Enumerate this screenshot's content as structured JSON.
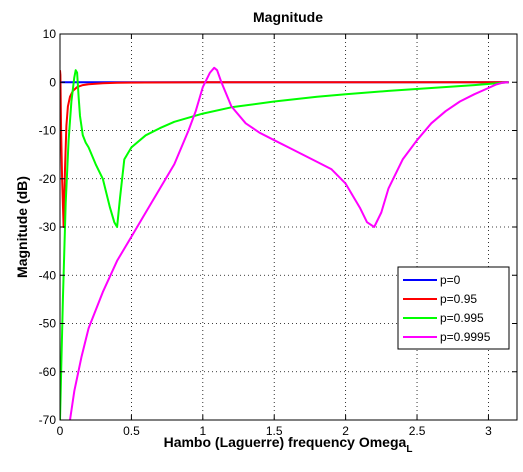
{
  "chart_data": {
    "type": "line",
    "title": "Magnitude",
    "xlabel": "Hambo (Laguerre) frequency Omega",
    "xlabel_subscript": "L",
    "ylabel": "Magnitude (dB)",
    "xlim": [
      0,
      3.2
    ],
    "ylim": [
      -70,
      10
    ],
    "xticks": [
      0,
      0.5,
      1,
      1.5,
      2,
      2.5,
      3
    ],
    "xtick_labels": [
      "0",
      "0.5",
      "1",
      "1.5",
      "2",
      "2.5",
      "3"
    ],
    "yticks": [
      -70,
      -60,
      -50,
      -40,
      -30,
      -20,
      -10,
      0,
      10
    ],
    "ytick_labels": [
      "-70",
      "-60",
      "-50",
      "-40",
      "-30",
      "-20",
      "-10",
      "0",
      "10"
    ],
    "grid": true,
    "legend_position": "bottom-right",
    "series": [
      {
        "name": "p=0",
        "color": "#0000ff",
        "x": [
          0,
          0.5,
          1.0,
          1.5,
          2.0,
          2.5,
          3.1416
        ],
        "y": [
          0,
          0,
          0,
          0,
          0,
          0,
          0
        ]
      },
      {
        "name": "p=0.95",
        "color": "#ff0000",
        "x": [
          0.0,
          0.003,
          0.008,
          0.015,
          0.025,
          0.035,
          0.045,
          0.055,
          0.07,
          0.09,
          0.12,
          0.16,
          0.2,
          0.3,
          0.4,
          0.6,
          1.0,
          1.5,
          2.0,
          2.5,
          3.1416
        ],
        "y": [
          2.5,
          1.5,
          -10,
          -20,
          -30,
          -18,
          -9,
          -5,
          -3,
          -1.8,
          -1.0,
          -0.6,
          -0.4,
          -0.2,
          -0.1,
          -0.05,
          0,
          0,
          0,
          0,
          0
        ]
      },
      {
        "name": "p=0.995",
        "color": "#00ff00",
        "x": [
          0.0,
          0.02,
          0.04,
          0.06,
          0.08,
          0.1,
          0.11,
          0.12,
          0.13,
          0.14,
          0.16,
          0.18,
          0.2,
          0.25,
          0.3,
          0.35,
          0.38,
          0.4,
          0.42,
          0.45,
          0.5,
          0.6,
          0.7,
          0.8,
          1.0,
          1.2,
          1.5,
          1.8,
          2.0,
          2.3,
          2.6,
          2.9,
          3.1416
        ],
        "y": [
          -70,
          -45,
          -25,
          -12,
          -4,
          1,
          2.5,
          2.0,
          -3,
          -7,
          -11,
          -12.5,
          -13.5,
          -17,
          -20,
          -26,
          -29,
          -30,
          -24,
          -16,
          -13.5,
          -11,
          -9.5,
          -8.2,
          -6.5,
          -5.2,
          -4.0,
          -3.0,
          -2.5,
          -1.8,
          -1.2,
          -0.6,
          0
        ]
      },
      {
        "name": "p=0.9995",
        "color": "#ff00ff",
        "x": [
          0.07,
          0.1,
          0.15,
          0.2,
          0.3,
          0.4,
          0.5,
          0.6,
          0.7,
          0.8,
          0.9,
          0.95,
          1.0,
          1.05,
          1.08,
          1.1,
          1.13,
          1.2,
          1.3,
          1.4,
          1.5,
          1.6,
          1.7,
          1.8,
          1.9,
          2.0,
          2.1,
          2.15,
          2.2,
          2.25,
          2.3,
          2.4,
          2.5,
          2.6,
          2.7,
          2.8,
          2.9,
          3.0,
          3.05,
          3.1,
          3.1416
        ],
        "y": [
          -70,
          -64,
          -57,
          -51,
          -43.5,
          -37,
          -32,
          -27,
          -22,
          -17,
          -10,
          -6,
          -1,
          2,
          3,
          2.5,
          0,
          -5,
          -8.5,
          -10.5,
          -12,
          -13.5,
          -15,
          -16.5,
          -18,
          -21,
          -26,
          -29,
          -30,
          -27,
          -22,
          -16,
          -12,
          -8.5,
          -6,
          -4,
          -2.5,
          -1.2,
          -0.5,
          -0.1,
          0
        ]
      }
    ]
  }
}
